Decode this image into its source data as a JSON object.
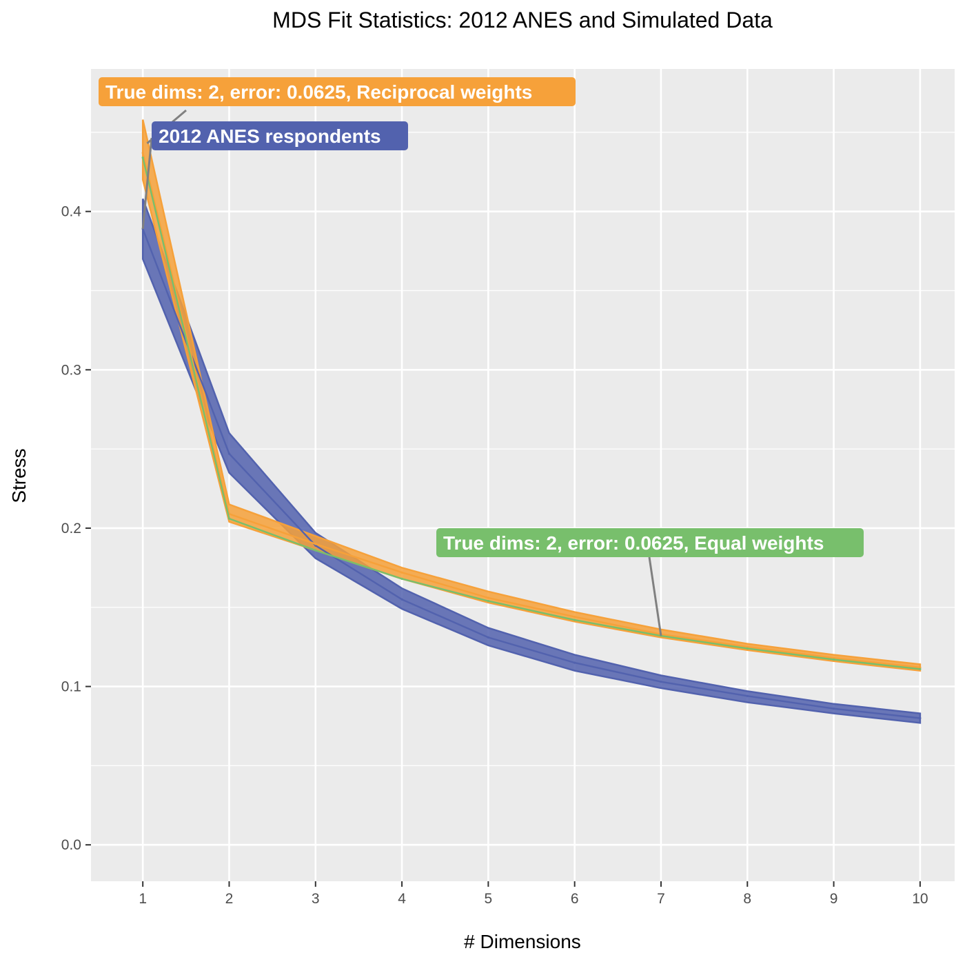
{
  "chart_data": {
    "type": "line",
    "title": "MDS Fit Statistics: 2012 ANES and Simulated Data",
    "xlabel": "# Dimensions",
    "ylabel": "Stress",
    "x": [
      1,
      2,
      3,
      4,
      5,
      6,
      7,
      8,
      9,
      10
    ],
    "xlim": [
      0.4,
      10.4
    ],
    "ylim": [
      -0.023,
      0.49
    ],
    "x_ticks": [
      "1",
      "2",
      "3",
      "4",
      "5",
      "6",
      "7",
      "8",
      "9",
      "10"
    ],
    "y_ticks": [
      "0.0",
      "0.1",
      "0.2",
      "0.3",
      "0.4"
    ],
    "grid": true,
    "legend": "none",
    "series": [
      {
        "name": "2012 ANES respondents",
        "color": "#5262ae",
        "values": [
          0.389,
          0.247,
          0.189,
          0.155,
          0.131,
          0.115,
          0.103,
          0.094,
          0.086,
          0.08
        ],
        "lower": [
          0.37,
          0.235,
          0.181,
          0.149,
          0.126,
          0.11,
          0.099,
          0.09,
          0.083,
          0.077
        ],
        "upper": [
          0.408,
          0.26,
          0.197,
          0.162,
          0.137,
          0.12,
          0.107,
          0.097,
          0.089,
          0.083
        ]
      },
      {
        "name": "True dims: 2, error: 0.0625, Reciprocal weights",
        "color": "#f6a13a",
        "values": [
          0.437,
          0.209,
          0.19,
          0.172,
          0.156,
          0.144,
          0.133,
          0.125,
          0.118,
          0.112
        ],
        "lower": [
          0.42,
          0.204,
          0.186,
          0.168,
          0.153,
          0.141,
          0.131,
          0.123,
          0.116,
          0.11
        ],
        "upper": [
          0.458,
          0.215,
          0.195,
          0.175,
          0.16,
          0.147,
          0.136,
          0.127,
          0.12,
          0.114
        ]
      },
      {
        "name": "True dims: 2, error: 0.0625, Equal weights",
        "color": "#78bf6c",
        "values": [
          0.434,
          0.206,
          0.186,
          0.168,
          0.154,
          0.142,
          0.132,
          0.124,
          0.117,
          0.111
        ]
      }
    ],
    "annotations": [
      {
        "text": "True dims: 2, error: 0.0625, Reciprocal weights",
        "color": "#f6a13a",
        "series": 1
      },
      {
        "text": "2012 ANES respondents",
        "color": "#5262ae",
        "series": 0
      },
      {
        "text": "True dims: 2, error: 0.0625, Equal weights",
        "color": "#78bf6c",
        "series": 2
      }
    ]
  }
}
